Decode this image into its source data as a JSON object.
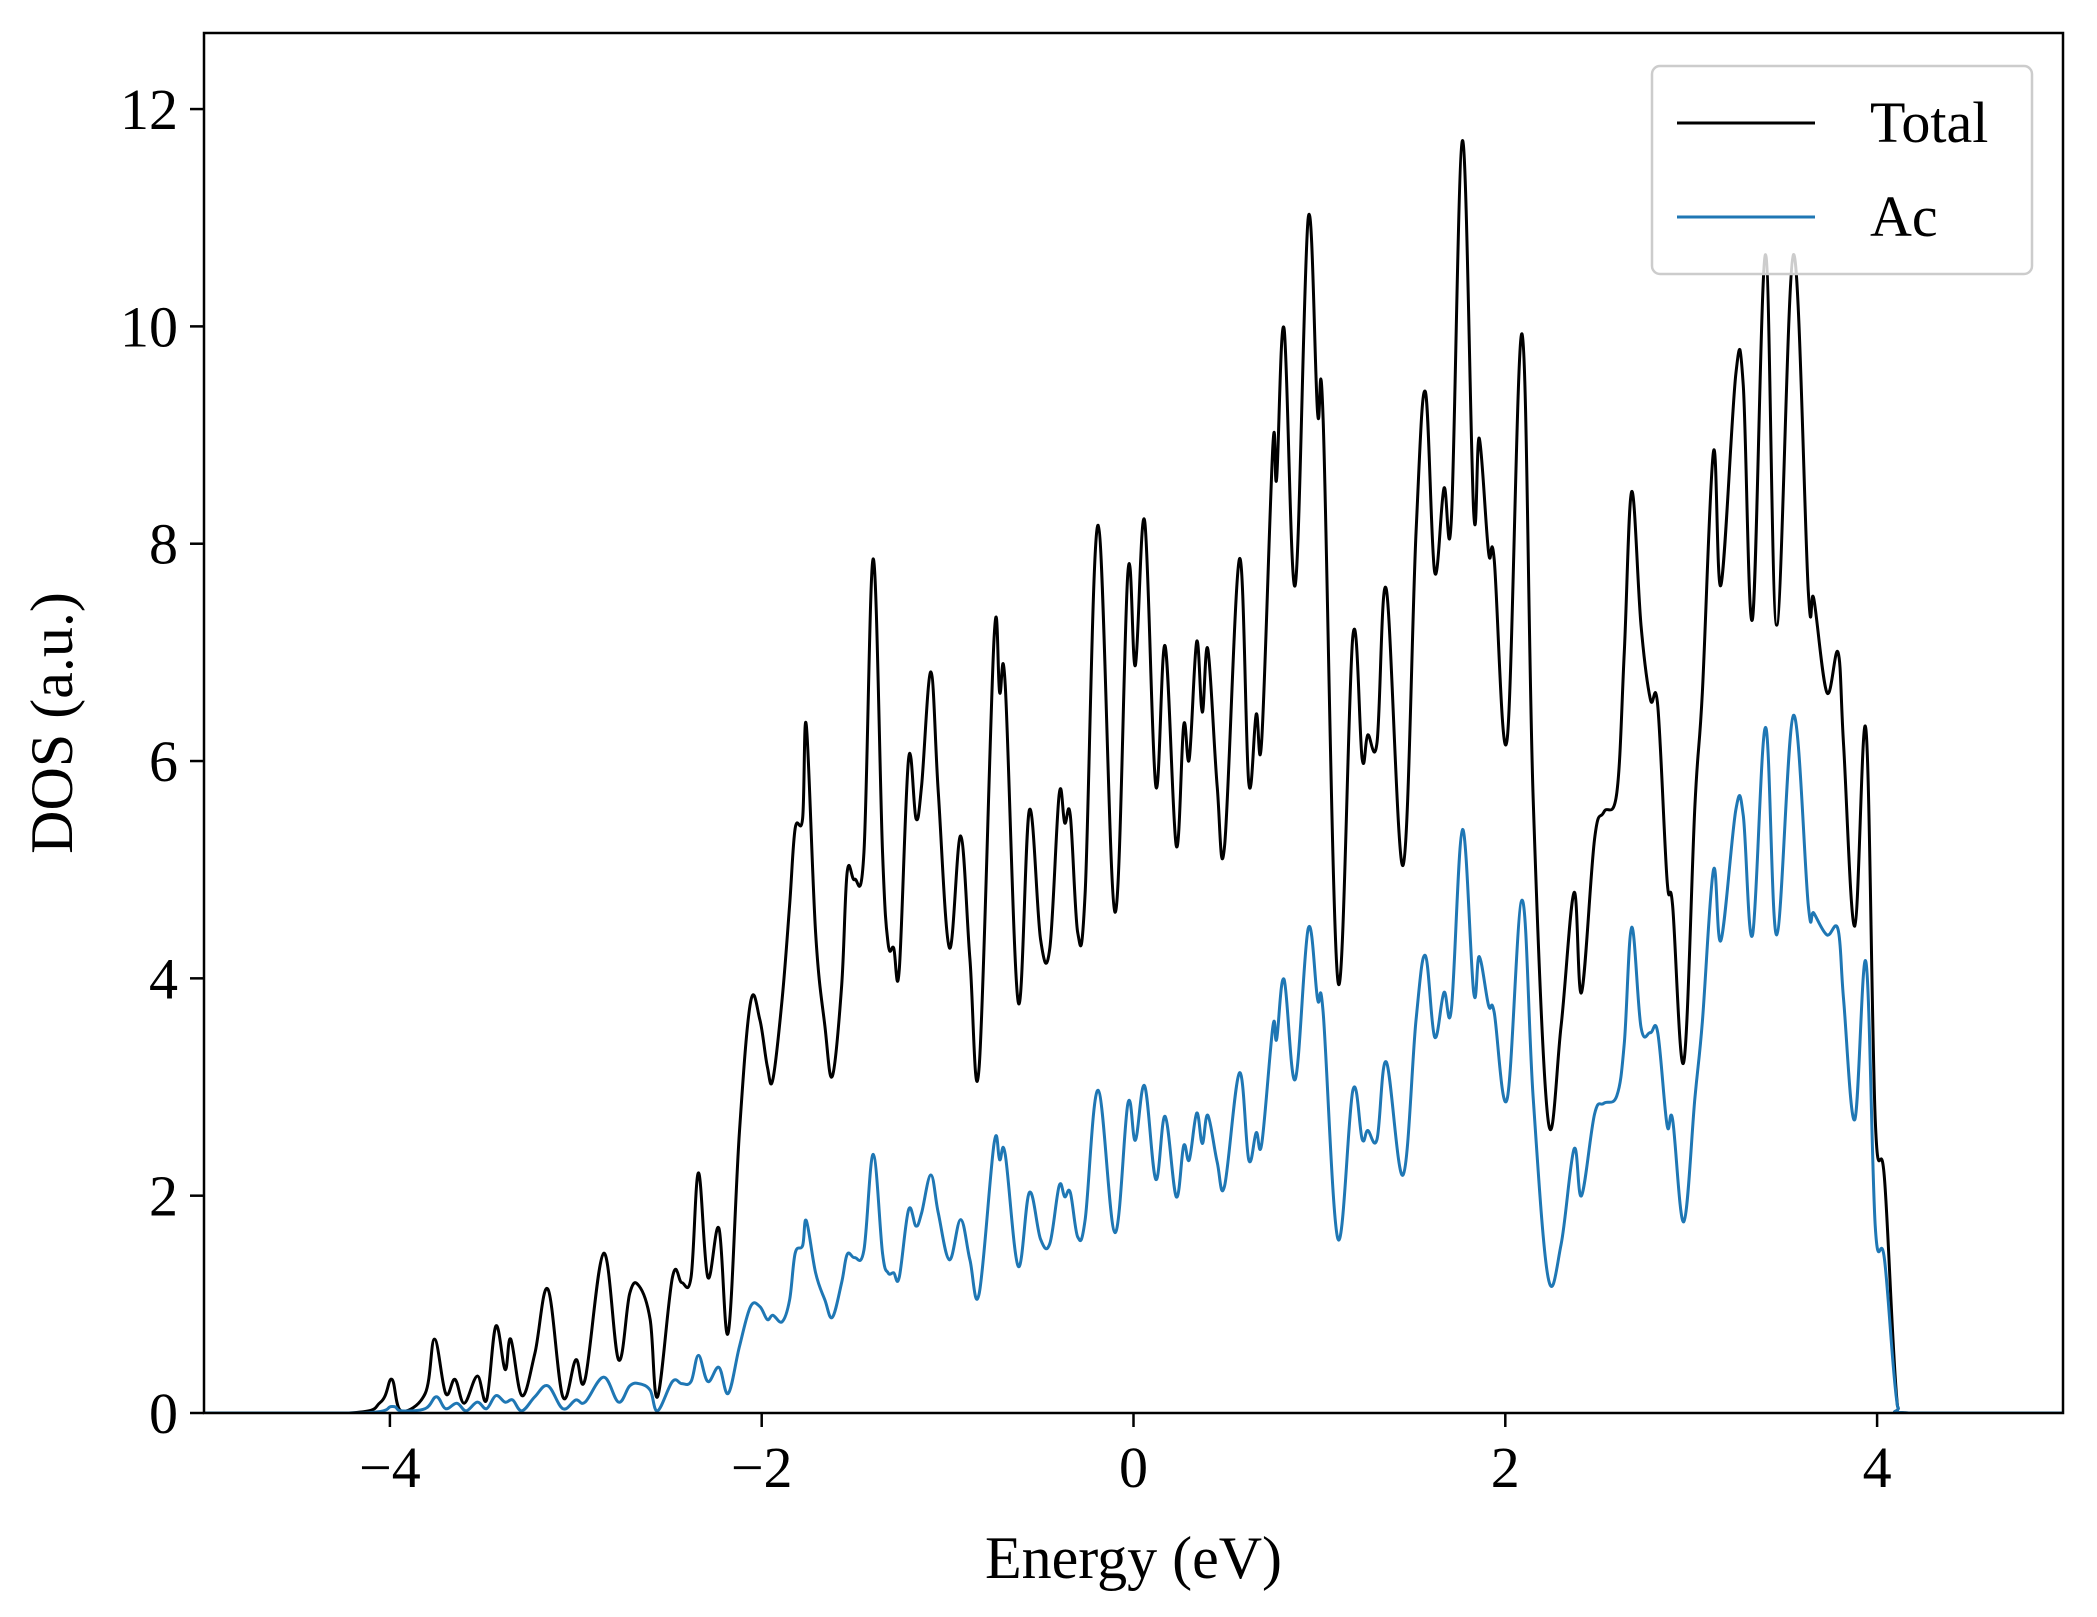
{
  "chart_data": {
    "type": "line",
    "title": "",
    "xlabel": "Energy (eV)",
    "ylabel": "DOS (a.u.)",
    "xlim": [
      -5,
      5
    ],
    "ylim": [
      0,
      12.7
    ],
    "xticks": [
      -4,
      -2,
      0,
      2,
      4
    ],
    "xtick_labels": [
      "−4",
      "−2",
      "0",
      "2",
      "4"
    ],
    "yticks": [
      0,
      2,
      4,
      6,
      8,
      10,
      12
    ],
    "ytick_labels": [
      "0",
      "2",
      "4",
      "6",
      "8",
      "10",
      "12"
    ],
    "grid": false,
    "legend_position": "top-right",
    "series": [
      {
        "name": "Total",
        "color": "#000000",
        "x": [
          -5,
          -4.22,
          -4.05,
          -3.99,
          -3.94,
          -3.81,
          -3.76,
          -3.7,
          -3.65,
          -3.6,
          -3.53,
          -3.48,
          -3.43,
          -3.38,
          -3.35,
          -3.29,
          -3.22,
          -3.15,
          -3.07,
          -3.0,
          -2.95,
          -2.85,
          -2.77,
          -2.71,
          -2.66,
          -2.6,
          -2.56,
          -2.48,
          -2.43,
          -2.38,
          -2.34,
          -2.29,
          -2.23,
          -2.18,
          -2.12,
          -2.06,
          -2.01,
          -1.97,
          -1.94,
          -1.89,
          -1.85,
          -1.82,
          -1.78,
          -1.76,
          -1.71,
          -1.66,
          -1.62,
          -1.57,
          -1.54,
          -1.5,
          -1.45,
          -1.4,
          -1.35,
          -1.32,
          -1.29,
          -1.26,
          -1.21,
          -1.17,
          -1.14,
          -1.09,
          -1.05,
          -0.99,
          -0.93,
          -0.88,
          -0.83,
          -0.75,
          -0.72,
          -0.69,
          -0.62,
          -0.56,
          -0.5,
          -0.45,
          -0.4,
          -0.37,
          -0.34,
          -0.3,
          -0.26,
          -0.19,
          -0.1,
          -0.03,
          0.01,
          0.06,
          0.12,
          0.17,
          0.23,
          0.27,
          0.3,
          0.34,
          0.37,
          0.4,
          0.45,
          0.49,
          0.57,
          0.62,
          0.66,
          0.69,
          0.75,
          0.77,
          0.81,
          0.87,
          0.94,
          0.99,
          1.02,
          1.1,
          1.18,
          1.23,
          1.26,
          1.31,
          1.36,
          1.45,
          1.52,
          1.57,
          1.62,
          1.67,
          1.71,
          1.77,
          1.83,
          1.86,
          1.91,
          1.94,
          2.01,
          2.09,
          2.15,
          2.23,
          2.3,
          2.37,
          2.41,
          2.48,
          2.53,
          2.6,
          2.64,
          2.68,
          2.73,
          2.78,
          2.82,
          2.87,
          2.9,
          2.96,
          3.02,
          3.06,
          3.12,
          3.16,
          3.24,
          3.28,
          3.33,
          3.4,
          3.46,
          3.55,
          3.63,
          3.66,
          3.73,
          3.79,
          3.82,
          3.88,
          3.94,
          3.99,
          4.04,
          4.11,
          4.18,
          5
        ],
        "y": [
          0,
          0,
          0.1,
          0.31,
          0.02,
          0.18,
          0.68,
          0.18,
          0.31,
          0.09,
          0.34,
          0.12,
          0.8,
          0.4,
          0.68,
          0.16,
          0.55,
          1.14,
          0.15,
          0.49,
          0.31,
          1.47,
          0.49,
          1.1,
          1.17,
          0.86,
          0.15,
          1.25,
          1.2,
          1.25,
          2.21,
          1.25,
          1.7,
          0.74,
          2.58,
          3.78,
          3.62,
          3.19,
          3.07,
          3.81,
          4.67,
          5.38,
          5.47,
          6.33,
          4.42,
          3.56,
          3.1,
          3.93,
          4.98,
          4.91,
          5.16,
          7.86,
          5.16,
          4.32,
          4.28,
          4.08,
          6.02,
          5.47,
          5.77,
          6.82,
          5.71,
          4.28,
          5.31,
          4.18,
          3.19,
          7.13,
          6.63,
          6.7,
          3.78,
          5.55,
          4.36,
          4.28,
          5.69,
          5.43,
          5.5,
          4.42,
          4.79,
          8.17,
          4.61,
          7.74,
          6.88,
          8.21,
          5.77,
          7.06,
          5.22,
          6.33,
          6.02,
          7.1,
          6.45,
          7.03,
          5.77,
          5.22,
          7.86,
          5.8,
          6.43,
          6.2,
          8.91,
          8.6,
          9.98,
          7.62,
          11.0,
          9.21,
          9.15,
          3.97,
          7.15,
          6.02,
          6.24,
          6.17,
          7.58,
          5.04,
          8.11,
          9.4,
          7.74,
          8.51,
          8.23,
          11.71,
          8.29,
          8.97,
          7.92,
          7.86,
          6.2,
          9.93,
          5.65,
          2.7,
          3.56,
          4.79,
          3.87,
          5.28,
          5.53,
          5.71,
          7.0,
          8.48,
          7.25,
          6.57,
          6.51,
          4.91,
          4.67,
          3.23,
          5.59,
          6.63,
          8.85,
          7.62,
          9.56,
          9.46,
          7.31,
          10.66,
          7.25,
          10.66,
          7.56,
          7.49,
          6.63,
          7.0,
          6.14,
          4.48,
          6.29,
          2.7,
          2.15,
          0.06,
          0,
          0
        ]
      },
      {
        "name": "Ac",
        "color": "#1f77b4",
        "x": [
          -5,
          -4.15,
          -3.99,
          -3.94,
          -3.81,
          -3.75,
          -3.7,
          -3.64,
          -3.59,
          -3.53,
          -3.48,
          -3.43,
          -3.38,
          -3.34,
          -3.29,
          -3.22,
          -3.15,
          -3.07,
          -3.0,
          -2.95,
          -2.85,
          -2.77,
          -2.71,
          -2.66,
          -2.6,
          -2.56,
          -2.48,
          -2.43,
          -2.38,
          -2.34,
          -2.29,
          -2.23,
          -2.18,
          -2.12,
          -2.06,
          -2.01,
          -1.97,
          -1.94,
          -1.89,
          -1.85,
          -1.82,
          -1.78,
          -1.76,
          -1.71,
          -1.66,
          -1.62,
          -1.57,
          -1.54,
          -1.5,
          -1.45,
          -1.4,
          -1.35,
          -1.32,
          -1.29,
          -1.26,
          -1.21,
          -1.17,
          -1.14,
          -1.09,
          -1.05,
          -0.99,
          -0.93,
          -0.88,
          -0.83,
          -0.75,
          -0.72,
          -0.69,
          -0.62,
          -0.56,
          -0.5,
          -0.45,
          -0.4,
          -0.37,
          -0.34,
          -0.3,
          -0.26,
          -0.19,
          -0.1,
          -0.03,
          0.01,
          0.06,
          0.12,
          0.17,
          0.23,
          0.27,
          0.3,
          0.34,
          0.37,
          0.4,
          0.45,
          0.49,
          0.57,
          0.62,
          0.66,
          0.69,
          0.75,
          0.77,
          0.81,
          0.87,
          0.94,
          0.99,
          1.02,
          1.1,
          1.18,
          1.23,
          1.26,
          1.31,
          1.36,
          1.45,
          1.52,
          1.57,
          1.62,
          1.67,
          1.71,
          1.77,
          1.83,
          1.86,
          1.91,
          1.94,
          2.01,
          2.09,
          2.15,
          2.23,
          2.3,
          2.37,
          2.41,
          2.48,
          2.53,
          2.6,
          2.64,
          2.68,
          2.73,
          2.78,
          2.82,
          2.87,
          2.9,
          2.96,
          3.02,
          3.06,
          3.12,
          3.16,
          3.24,
          3.28,
          3.33,
          3.4,
          3.46,
          3.55,
          3.63,
          3.66,
          3.73,
          3.79,
          3.82,
          3.88,
          3.94,
          3.99,
          4.04,
          4.11,
          4.18,
          5
        ],
        "y": [
          0,
          0,
          0.06,
          0.02,
          0.04,
          0.15,
          0.04,
          0.09,
          0.02,
          0.1,
          0.04,
          0.16,
          0.1,
          0.12,
          0.02,
          0.15,
          0.25,
          0.04,
          0.12,
          0.1,
          0.33,
          0.1,
          0.25,
          0.27,
          0.21,
          0.02,
          0.29,
          0.27,
          0.29,
          0.53,
          0.29,
          0.42,
          0.18,
          0.61,
          0.98,
          0.98,
          0.86,
          0.9,
          0.84,
          1.04,
          1.47,
          1.54,
          1.77,
          1.29,
          1.04,
          0.88,
          1.2,
          1.46,
          1.43,
          1.5,
          2.38,
          1.47,
          1.29,
          1.29,
          1.25,
          1.87,
          1.72,
          1.84,
          2.19,
          1.84,
          1.41,
          1.78,
          1.41,
          1.1,
          2.48,
          2.33,
          2.38,
          1.35,
          2.03,
          1.6,
          1.56,
          2.09,
          1.99,
          2.03,
          1.62,
          1.78,
          2.97,
          1.66,
          2.85,
          2.51,
          3.01,
          2.15,
          2.73,
          1.99,
          2.46,
          2.33,
          2.76,
          2.48,
          2.74,
          2.31,
          2.09,
          3.13,
          2.33,
          2.58,
          2.48,
          3.56,
          3.44,
          3.99,
          3.07,
          4.46,
          3.81,
          3.69,
          1.6,
          2.97,
          2.52,
          2.6,
          2.52,
          3.23,
          2.19,
          3.62,
          4.21,
          3.46,
          3.87,
          3.72,
          5.37,
          3.87,
          4.2,
          3.75,
          3.69,
          2.89,
          4.72,
          2.9,
          1.25,
          1.55,
          2.43,
          2.0,
          2.75,
          2.85,
          2.92,
          3.4,
          4.47,
          3.55,
          3.5,
          3.5,
          2.65,
          2.7,
          1.76,
          2.9,
          3.6,
          5.0,
          4.35,
          5.55,
          5.5,
          4.4,
          6.31,
          4.4,
          6.42,
          4.67,
          4.6,
          4.4,
          4.45,
          3.8,
          2.7,
          4.15,
          1.72,
          1.41,
          0.06,
          0,
          0
        ]
      }
    ]
  }
}
